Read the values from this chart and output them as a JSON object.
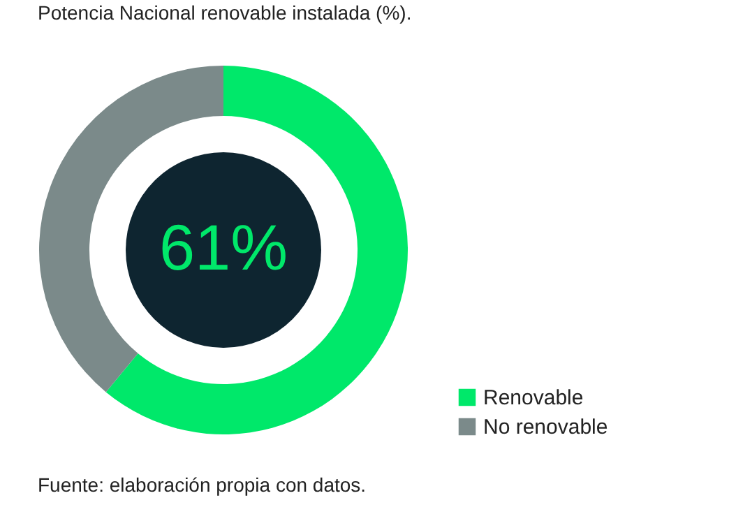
{
  "chart_data": {
    "type": "donut",
    "title": "Potencia Nacional renovable instalada (%).",
    "categories": [
      "Renovable",
      "No renovable"
    ],
    "values": [
      61,
      39
    ],
    "colors": [
      "#00e86a",
      "#7b8a8a"
    ],
    "legend": "bottom right",
    "annotations": [
      "61%",
      "Fuente: elaboración propia con datos."
    ]
  }
}
